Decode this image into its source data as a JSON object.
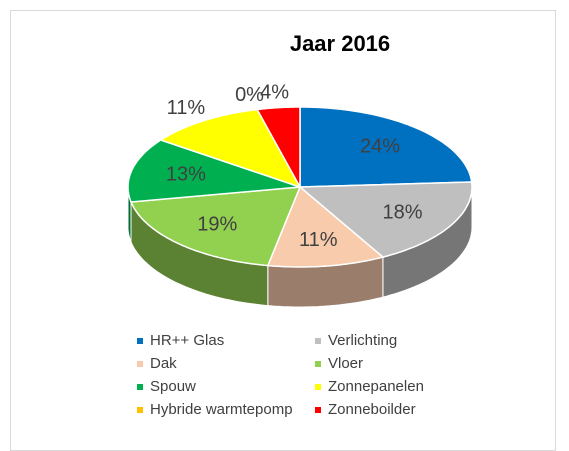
{
  "chart_data": {
    "type": "pie3d",
    "title": "Jaar 2016",
    "categories": [
      "HR++ Glas",
      "Verlichting",
      "Dak",
      "Vloer",
      "Spouw",
      "Zonnepanelen",
      "Hybride warmtepomp",
      "Zonneboilder"
    ],
    "values": [
      24,
      18,
      11,
      19,
      13,
      11,
      0,
      4
    ],
    "value_labels": [
      "24%",
      "18%",
      "11%",
      "19%",
      "13%",
      "11%",
      "0%",
      "4%"
    ],
    "colors": [
      "#0070c0",
      "#bfbfbf",
      "#f8cbad",
      "#92d050",
      "#00b050",
      "#ffff00",
      "#ffc000",
      "#ff0000"
    ],
    "legend": "bottom"
  }
}
